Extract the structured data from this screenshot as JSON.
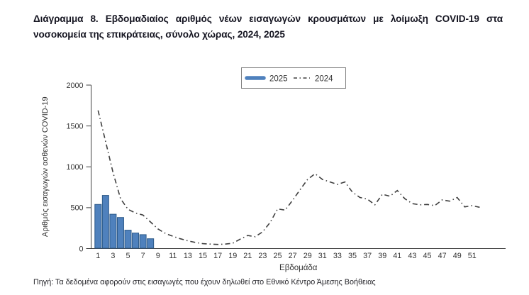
{
  "page": {
    "title": "Διάγραμμα 8. Εβδομαδιαίος αριθμός νέων εισαγωγών κρουσμάτων με λοίμωξη COVID-19 στα νοσοκομεία της επικράτειας, σύνολο χώρας, 2024, 2025",
    "source_note": "Πηγή: Τα δεδομένα αφορούν στις εισαγωγές που έχουν δηλωθεί στο Εθνικό Κέντρο Άμεσης Βοήθειας"
  },
  "colors": {
    "bar_fill": "#4f81bd",
    "bar_border": "#2e5a88",
    "line_2024": "#3f3f3f",
    "axis": "#404040",
    "legend_border": "#808080",
    "text": "#333333"
  },
  "chart_data": {
    "type": "bar+line",
    "xlabel": "Εβδομάδα",
    "ylabel": "Αριθμός εισαγωγών ασθενών COVID-19",
    "ylim": [
      0,
      2000
    ],
    "yticks": [
      0,
      500,
      1000,
      1500,
      2000
    ],
    "xticks": [
      1,
      3,
      5,
      7,
      9,
      11,
      13,
      15,
      17,
      19,
      21,
      23,
      25,
      27,
      29,
      31,
      33,
      35,
      37,
      39,
      41,
      43,
      45,
      47,
      49,
      51
    ],
    "grid": false,
    "legend": {
      "position": "top-center",
      "entries": [
        "2025",
        "2024"
      ]
    },
    "series": [
      {
        "name": "2025",
        "type": "bar",
        "color": "#4f81bd",
        "border_color": "#2e5a88",
        "x": [
          1,
          2,
          3,
          4,
          5,
          6,
          7,
          8
        ],
        "values": [
          540,
          650,
          420,
          380,
          225,
          190,
          170,
          120
        ]
      },
      {
        "name": "2024",
        "type": "line",
        "style": "dash-dot",
        "color": "#3f3f3f",
        "x": [
          1,
          2,
          3,
          4,
          5,
          6,
          7,
          8,
          9,
          10,
          11,
          12,
          13,
          14,
          15,
          16,
          17,
          18,
          19,
          20,
          21,
          22,
          23,
          24,
          25,
          26,
          27,
          28,
          29,
          30,
          31,
          32,
          33,
          34,
          35,
          36,
          37,
          38,
          39,
          40,
          41,
          42,
          43,
          44,
          45,
          46,
          47,
          48,
          49,
          50,
          51,
          52
        ],
        "values": [
          1690,
          1310,
          930,
          610,
          480,
          435,
          410,
          325,
          240,
          185,
          150,
          120,
          95,
          75,
          60,
          55,
          50,
          55,
          65,
          115,
          160,
          145,
          205,
          320,
          485,
          470,
          590,
          720,
          845,
          915,
          845,
          815,
          785,
          815,
          690,
          625,
          605,
          535,
          665,
          640,
          710,
          610,
          550,
          535,
          540,
          525,
          595,
          580,
          625,
          510,
          525,
          505
        ]
      }
    ]
  }
}
